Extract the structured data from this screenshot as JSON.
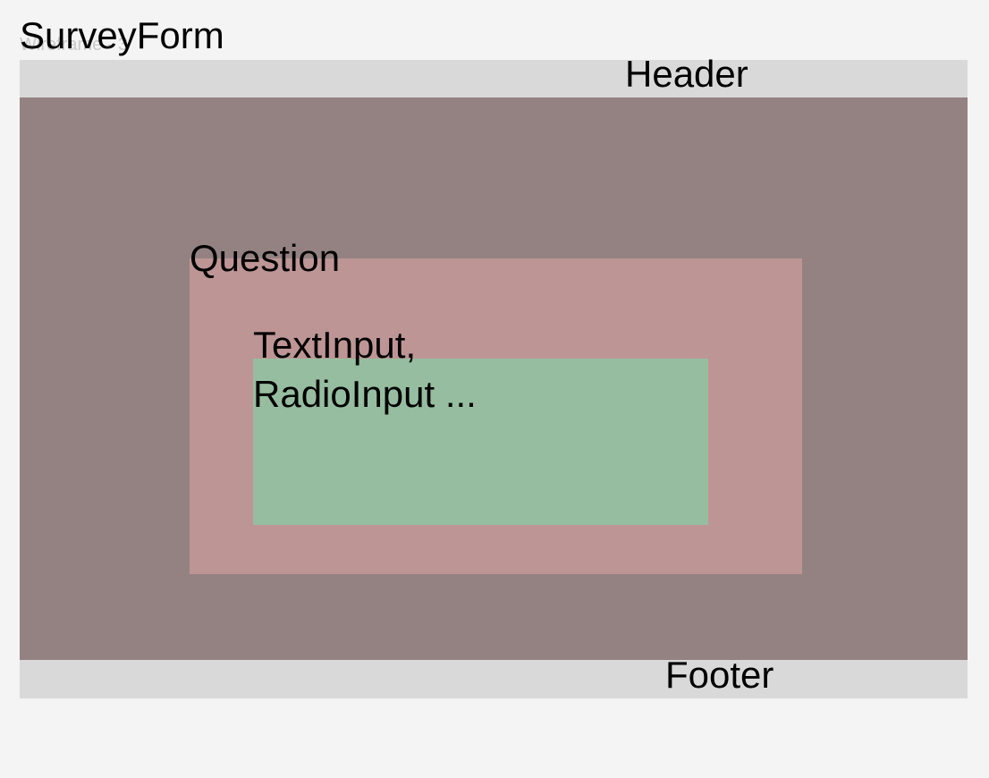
{
  "frame": {
    "caption": "Wireframe - 3"
  },
  "labels": {
    "survey_form": "SurveyForm",
    "header": "Header",
    "question": "Question",
    "input": "TextInput,\nRadioInput ...",
    "footer": "Footer"
  },
  "colors": {
    "page_background": "#f4f4f4",
    "header_footer_fill": "#d9d9d9",
    "survey_form_fill": "#948282",
    "question_fill": "#be9595",
    "input_fill": "#96bd9f"
  }
}
